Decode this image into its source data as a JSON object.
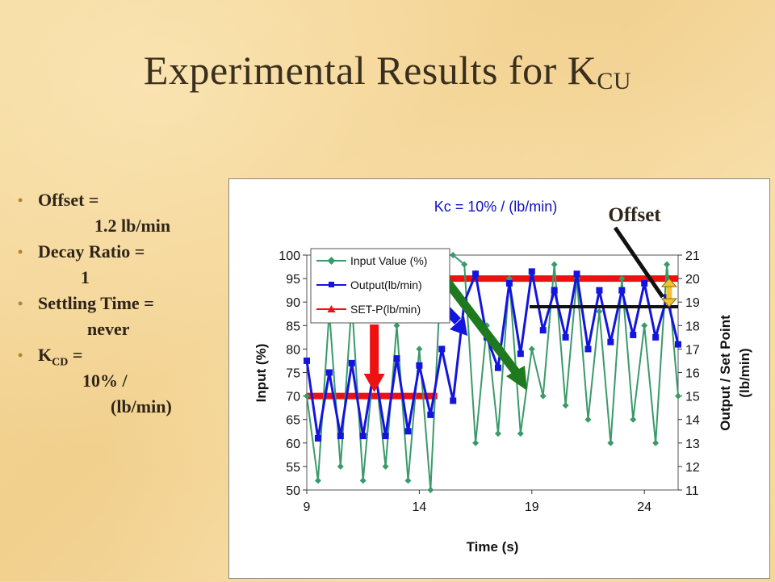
{
  "slide": {
    "title": "Experimental Results for K",
    "title_sub": "CU",
    "bullets": [
      {
        "label": "Offset =",
        "cont": [
          "1.2 lb/min"
        ]
      },
      {
        "label": "Decay Ratio =",
        "cont": [
          "1"
        ]
      },
      {
        "label": "Settling Time =",
        "cont": [
          "never"
        ]
      },
      {
        "label": "K",
        "label_sub": "CD",
        "label_after": " =",
        "cont": [
          "10% /",
          "(lb/min)"
        ]
      }
    ]
  },
  "chart_data": {
    "type": "line",
    "title": "Kc = 10%  / (lb/min)",
    "xlabel": "Time (s)",
    "ylabel": "Input (%)",
    "y2label_line1": "Output / Set Point",
    "y2label_line2": "(lb/min)",
    "xlim": [
      9,
      25.5
    ],
    "ylim": [
      50,
      100
    ],
    "y2lim": [
      11,
      21
    ],
    "x_ticks": [
      "9",
      "14",
      "19",
      "24"
    ],
    "y_ticks": [
      "100",
      "95",
      "90",
      "85",
      "80",
      "75",
      "70",
      "65",
      "60",
      "55",
      "50"
    ],
    "y2_ticks": [
      "21",
      "20",
      "19",
      "18",
      "17",
      "16",
      "15",
      "14",
      "13",
      "12",
      "11"
    ],
    "legend": [
      "Input Value (%)",
      "Output(lb/min)",
      "SET-P(lb/min)"
    ],
    "annotation": "Offset",
    "colors": {
      "input": "#3a9a6a",
      "output": "#1414e0",
      "setpoint": "#ee1111"
    },
    "series": [
      {
        "name": "Input Value (%)",
        "axis": "left",
        "x": [
          9.0,
          9.5,
          10.0,
          10.5,
          11.0,
          11.5,
          12.0,
          12.5,
          13.0,
          13.5,
          14.0,
          14.5,
          15.0,
          15.5,
          16.0,
          16.5,
          17.0,
          17.5,
          18.0,
          18.5,
          19.0,
          19.5,
          20.0,
          20.5,
          21.0,
          21.5,
          22.0,
          22.5,
          23.0,
          23.5,
          24.0,
          24.5,
          25.0,
          25.5
        ],
        "y": [
          70,
          52,
          88,
          55,
          90,
          52,
          78,
          55,
          85,
          52,
          80,
          50,
          100,
          100,
          98,
          60,
          85,
          62,
          95,
          62,
          80,
          70,
          98,
          68,
          95,
          65,
          88,
          60,
          95,
          65,
          85,
          60,
          98,
          70
        ]
      },
      {
        "name": "Output(lb/min)",
        "axis": "right",
        "x": [
          9.0,
          9.5,
          10.0,
          10.5,
          11.0,
          11.5,
          12.0,
          12.5,
          13.0,
          13.5,
          14.0,
          14.5,
          15.0,
          15.5,
          16.0,
          16.5,
          17.0,
          17.5,
          18.0,
          18.5,
          19.0,
          19.5,
          20.0,
          20.5,
          21.0,
          21.5,
          22.0,
          22.5,
          23.0,
          23.5,
          24.0,
          24.5,
          25.0,
          25.5
        ],
        "y": [
          16.5,
          13.2,
          16.0,
          13.3,
          16.4,
          13.3,
          16.2,
          13.3,
          16.6,
          13.5,
          16.3,
          14.2,
          17.0,
          14.8,
          19.0,
          20.2,
          17.5,
          16.2,
          19.8,
          16.8,
          20.3,
          17.8,
          19.5,
          17.5,
          20.2,
          17.0,
          19.5,
          17.3,
          19.5,
          17.6,
          19.8,
          17.5,
          19.2,
          17.2
        ]
      },
      {
        "name": "SET-P(lb/min)",
        "axis": "right",
        "segments": [
          {
            "x": [
              9.0,
              14.8
            ],
            "y": [
              15.0,
              15.0
            ]
          },
          {
            "x": [
              15.3,
              25.5
            ],
            "y": [
              20.0,
              20.0
            ]
          }
        ]
      }
    ],
    "offset_reference": 18.8
  }
}
